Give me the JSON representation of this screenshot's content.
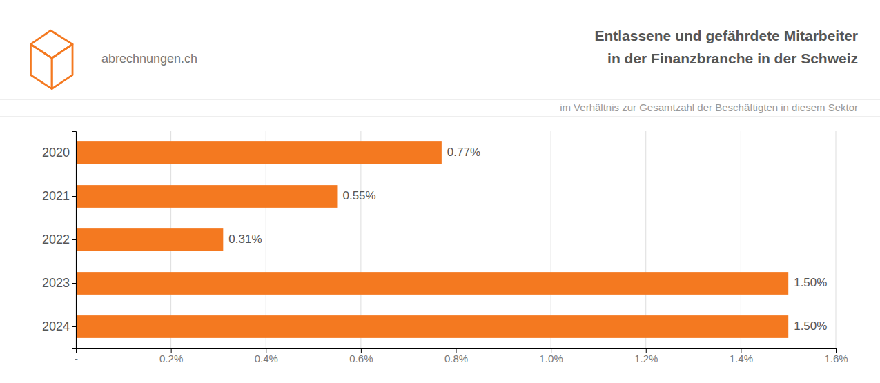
{
  "chart_data": {
    "type": "bar",
    "orientation": "horizontal",
    "title": [
      "Entlassene und gefährdete Mitarbeiter",
      "in der Finanzbranche in der Schweiz"
    ],
    "subtitle": "im Verhältnis zur Gesamtzahl der Beschäftigten in diesem Sektor",
    "annotations": [
      "abrechnungen.ch"
    ],
    "categories": [
      "2020",
      "2021",
      "2022",
      "2023",
      "2024"
    ],
    "values": [
      0.77,
      0.55,
      0.31,
      1.5,
      1.5
    ],
    "value_labels": [
      "0.77%",
      "0.55%",
      "0.31%",
      "1.50%",
      "1.50%"
    ],
    "data_labels": true,
    "color": "#F47920",
    "xlim": [
      0,
      1.6
    ],
    "xticks": [
      {
        "value": 0,
        "label": "-"
      },
      {
        "value": 0.2,
        "label": "0.2%"
      },
      {
        "value": 0.4,
        "label": "0.4%"
      },
      {
        "value": 0.6,
        "label": "0.6%"
      },
      {
        "value": 0.8,
        "label": "0.8%"
      },
      {
        "value": 1.0,
        "label": "1.0%"
      },
      {
        "value": 1.2,
        "label": "1.2%"
      },
      {
        "value": 1.4,
        "label": "1.4%"
      },
      {
        "value": 1.6,
        "label": "1.6%"
      }
    ],
    "grid": true
  }
}
